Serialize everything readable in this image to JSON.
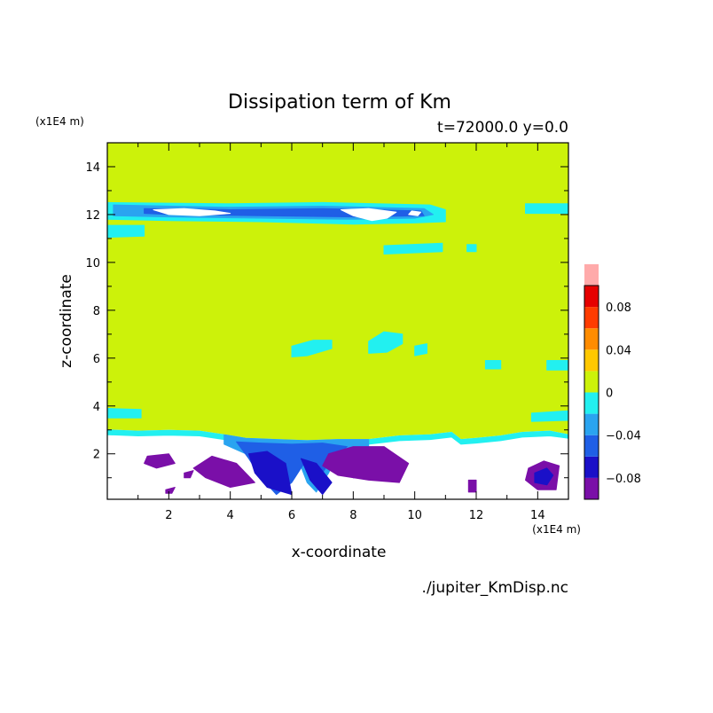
{
  "chart_data": {
    "type": "heatmap",
    "title": "Dissipation term of Km",
    "subtitle": "t=72000.0 y=0.0",
    "xlabel": "x-coordinate",
    "ylabel": "z-coordinate",
    "x_unit": "(x1E4 m)",
    "y_unit": "(x1E4 m)",
    "xlim": [
      0,
      15
    ],
    "ylim": [
      0.1,
      15
    ],
    "xticks": [
      2,
      4,
      6,
      8,
      10,
      12,
      14
    ],
    "yticks": [
      2,
      4,
      6,
      8,
      10,
      12,
      14
    ],
    "source": "./jupiter_KmDisp.nc",
    "colorbar": {
      "levels": [
        -0.1,
        -0.08,
        -0.06,
        -0.04,
        -0.02,
        0,
        0.02,
        0.04,
        0.06,
        0.08,
        0.1
      ],
      "colors": [
        "#7a0fa8",
        "#1a10c8",
        "#1f5fe6",
        "#2aa4f0",
        "#22f0f0",
        "#ccf20a",
        "#ffc800",
        "#ff8c00",
        "#ff3c00",
        "#e60000",
        "#ffaaaa"
      ],
      "tick_labels": [
        {
          "value": -0.08,
          "label": "−0.08"
        },
        {
          "value": -0.04,
          "label": "−0.04"
        },
        {
          "value": 0,
          "label": "0"
        },
        {
          "value": 0.04,
          "label": "0.04"
        },
        {
          "value": 0.08,
          "label": "0.08"
        }
      ]
    },
    "background_value_color": "#ccf20a",
    "regions": [
      {
        "level": "below",
        "color": "#ffffff",
        "points": [
          [
            0,
            0.1
          ],
          [
            15,
            0.1
          ],
          [
            15,
            2.8
          ],
          [
            14.4,
            2.95
          ],
          [
            13.5,
            2.9
          ],
          [
            12.8,
            2.75
          ],
          [
            12,
            2.65
          ],
          [
            11.5,
            2.6
          ],
          [
            11.2,
            2.9
          ],
          [
            10.5,
            2.8
          ],
          [
            9.5,
            2.75
          ],
          [
            8.5,
            2.6
          ],
          [
            7.5,
            2.6
          ],
          [
            6.5,
            2.55
          ],
          [
            5.5,
            2.6
          ],
          [
            4.5,
            2.65
          ],
          [
            3.8,
            2.8
          ],
          [
            3,
            2.95
          ],
          [
            2,
            2.98
          ],
          [
            1,
            2.95
          ],
          [
            0,
            3.0
          ]
        ]
      },
      {
        "level": -0.02,
        "color": "#22f0f0",
        "points": [
          [
            0,
            3.0
          ],
          [
            1,
            2.95
          ],
          [
            2,
            2.98
          ],
          [
            3,
            2.95
          ],
          [
            3.8,
            2.8
          ],
          [
            4.5,
            2.65
          ],
          [
            5.5,
            2.6
          ],
          [
            6.5,
            2.55
          ],
          [
            7.5,
            2.6
          ],
          [
            8.5,
            2.6
          ],
          [
            9.5,
            2.75
          ],
          [
            10.5,
            2.8
          ],
          [
            11.2,
            2.9
          ],
          [
            11.5,
            2.6
          ],
          [
            12,
            2.65
          ],
          [
            12.8,
            2.75
          ],
          [
            13.5,
            2.9
          ],
          [
            14.4,
            2.95
          ],
          [
            15,
            2.8
          ],
          [
            15,
            2.65
          ],
          [
            14.4,
            2.75
          ],
          [
            13.5,
            2.7
          ],
          [
            12.8,
            2.55
          ],
          [
            12,
            2.45
          ],
          [
            11.5,
            2.4
          ],
          [
            11.2,
            2.7
          ],
          [
            10.5,
            2.6
          ],
          [
            9.5,
            2.55
          ],
          [
            8.5,
            2.4
          ],
          [
            7.5,
            2.4
          ],
          [
            6.5,
            2.35
          ],
          [
            5.5,
            2.4
          ],
          [
            4.5,
            2.45
          ],
          [
            3.8,
            2.6
          ],
          [
            3,
            2.75
          ],
          [
            2,
            2.78
          ],
          [
            1,
            2.75
          ],
          [
            0,
            2.8
          ]
        ]
      },
      {
        "level": -0.02,
        "color": "#22f0f0",
        "points": [
          [
            0,
            12.5
          ],
          [
            4,
            12.45
          ],
          [
            7,
            12.5
          ],
          [
            10.5,
            12.4
          ],
          [
            11,
            12.2
          ],
          [
            11,
            11.7
          ],
          [
            10,
            11.65
          ],
          [
            8,
            11.6
          ],
          [
            5,
            11.7
          ],
          [
            2,
            11.75
          ],
          [
            0,
            11.8
          ]
        ]
      },
      {
        "level": -0.02,
        "color": "#22f0f0",
        "points": [
          [
            0,
            11.55
          ],
          [
            1.2,
            11.55
          ],
          [
            1.2,
            11.1
          ],
          [
            0,
            11.05
          ]
        ]
      },
      {
        "level": -0.02,
        "color": "#22f0f0",
        "points": [
          [
            13.6,
            12.45
          ],
          [
            15,
            12.45
          ],
          [
            15,
            12.05
          ],
          [
            13.6,
            12.05
          ]
        ]
      },
      {
        "level": -0.02,
        "color": "#22f0f0",
        "points": [
          [
            9,
            10.7
          ],
          [
            10.9,
            10.8
          ],
          [
            10.9,
            10.45
          ],
          [
            9,
            10.35
          ]
        ]
      },
      {
        "level": -0.02,
        "color": "#22f0f0",
        "points": [
          [
            11.7,
            10.75
          ],
          [
            12,
            10.75
          ],
          [
            12,
            10.45
          ],
          [
            11.7,
            10.45
          ]
        ]
      },
      {
        "level": -0.02,
        "color": "#22f0f0",
        "points": [
          [
            6,
            6.5
          ],
          [
            6.7,
            6.75
          ],
          [
            7.3,
            6.75
          ],
          [
            7.3,
            6.4
          ],
          [
            6.5,
            6.1
          ],
          [
            6,
            6.05
          ]
        ]
      },
      {
        "level": -0.02,
        "color": "#22f0f0",
        "points": [
          [
            8.5,
            6.7
          ],
          [
            9,
            7.1
          ],
          [
            9.6,
            7.0
          ],
          [
            9.6,
            6.6
          ],
          [
            9.1,
            6.25
          ],
          [
            8.5,
            6.2
          ]
        ]
      },
      {
        "level": -0.02,
        "color": "#22f0f0",
        "points": [
          [
            10,
            6.5
          ],
          [
            10.4,
            6.6
          ],
          [
            10.4,
            6.2
          ],
          [
            10,
            6.1
          ]
        ]
      },
      {
        "level": -0.02,
        "color": "#22f0f0",
        "points": [
          [
            12.3,
            5.9
          ],
          [
            12.8,
            5.9
          ],
          [
            12.8,
            5.55
          ],
          [
            12.3,
            5.55
          ]
        ]
      },
      {
        "level": -0.02,
        "color": "#22f0f0",
        "points": [
          [
            14.3,
            5.9
          ],
          [
            15,
            5.9
          ],
          [
            15,
            5.5
          ],
          [
            14.3,
            5.5
          ]
        ]
      },
      {
        "level": -0.02,
        "color": "#22f0f0",
        "points": [
          [
            0,
            3.9
          ],
          [
            1.1,
            3.85
          ],
          [
            1.1,
            3.5
          ],
          [
            0,
            3.5
          ]
        ]
      },
      {
        "level": -0.02,
        "color": "#22f0f0",
        "points": [
          [
            13.8,
            3.7
          ],
          [
            15,
            3.8
          ],
          [
            15,
            3.4
          ],
          [
            13.8,
            3.35
          ]
        ]
      },
      {
        "level": -0.04,
        "color": "#2aa4f0",
        "points": [
          [
            0.2,
            12.4
          ],
          [
            4,
            12.3
          ],
          [
            7,
            12.35
          ],
          [
            10.3,
            12.25
          ],
          [
            10.6,
            12.0
          ],
          [
            10,
            11.85
          ],
          [
            8,
            11.8
          ],
          [
            5,
            11.85
          ],
          [
            2,
            11.9
          ],
          [
            0.2,
            11.95
          ]
        ]
      },
      {
        "level": -0.06,
        "color": "#1f5fe6",
        "points": [
          [
            1.2,
            12.25
          ],
          [
            4,
            12.2
          ],
          [
            7,
            12.25
          ],
          [
            10.2,
            12.15
          ],
          [
            10.3,
            11.95
          ],
          [
            8,
            11.9
          ],
          [
            5,
            11.95
          ],
          [
            2,
            12.0
          ],
          [
            1.2,
            12.05
          ]
        ]
      },
      {
        "level": "below",
        "color": "#ffffff",
        "points": [
          [
            1.5,
            12.2
          ],
          [
            2.5,
            12.25
          ],
          [
            3.5,
            12.15
          ],
          [
            4,
            12.05
          ],
          [
            3,
            11.95
          ],
          [
            2,
            12.0
          ]
        ]
      },
      {
        "level": "below",
        "color": "#ffffff",
        "points": [
          [
            7.6,
            12.2
          ],
          [
            8.5,
            12.25
          ],
          [
            9.4,
            12.1
          ],
          [
            9.1,
            11.85
          ],
          [
            8.6,
            11.75
          ],
          [
            8.0,
            11.95
          ]
        ]
      },
      {
        "level": "below",
        "color": "#ffffff",
        "points": [
          [
            9.9,
            12.15
          ],
          [
            10.2,
            12.1
          ],
          [
            10.1,
            11.95
          ],
          [
            9.8,
            12.0
          ]
        ]
      },
      {
        "level": -0.04,
        "color": "#2aa4f0",
        "points": [
          [
            3.8,
            2.8
          ],
          [
            4.5,
            2.65
          ],
          [
            5.5,
            2.6
          ],
          [
            6.5,
            2.55
          ],
          [
            7.5,
            2.6
          ],
          [
            8.5,
            2.6
          ],
          [
            8.5,
            2.2
          ],
          [
            7.5,
            2.0
          ],
          [
            7.2,
            1.2
          ],
          [
            6.8,
            0.4
          ],
          [
            6.5,
            0.8
          ],
          [
            6.2,
            1.8
          ],
          [
            5.8,
            1.0
          ],
          [
            5.5,
            0.4
          ],
          [
            5.0,
            1.2
          ],
          [
            4.5,
            2.0
          ],
          [
            3.8,
            2.4
          ]
        ]
      },
      {
        "level": -0.06,
        "color": "#1f5fe6",
        "points": [
          [
            4.2,
            2.5
          ],
          [
            5.0,
            2.45
          ],
          [
            6.0,
            2.4
          ],
          [
            7.0,
            2.45
          ],
          [
            7.8,
            2.3
          ],
          [
            7.2,
            1.6
          ],
          [
            6.8,
            0.8
          ],
          [
            6.4,
            1.6
          ],
          [
            6.0,
            0.8
          ],
          [
            5.5,
            0.3
          ],
          [
            5.0,
            1.0
          ],
          [
            4.6,
            1.8
          ]
        ]
      },
      {
        "level": -0.08,
        "color": "#1a10c8",
        "points": [
          [
            4.6,
            2.0
          ],
          [
            5.2,
            2.1
          ],
          [
            5.8,
            1.6
          ],
          [
            6.0,
            0.3
          ],
          [
            5.2,
            0.6
          ],
          [
            4.8,
            1.2
          ]
        ]
      },
      {
        "level": -0.08,
        "color": "#1a10c8",
        "points": [
          [
            6.3,
            1.8
          ],
          [
            6.8,
            1.6
          ],
          [
            7.3,
            0.8
          ],
          [
            7.0,
            0.3
          ],
          [
            6.6,
            0.9
          ]
        ]
      },
      {
        "level": -0.08,
        "color": "#1a10c8",
        "points": [
          [
            7.5,
            1.8
          ],
          [
            8.5,
            2.0
          ],
          [
            9.3,
            1.7
          ],
          [
            9.0,
            1.1
          ],
          [
            8.0,
            1.0
          ],
          [
            7.4,
            1.3
          ]
        ]
      },
      {
        "level": -0.1,
        "color": "#7a0fa8",
        "points": [
          [
            1.3,
            1.9
          ],
          [
            2.0,
            2.0
          ],
          [
            2.2,
            1.6
          ],
          [
            1.6,
            1.4
          ],
          [
            1.2,
            1.6
          ]
        ]
      },
      {
        "level": -0.1,
        "color": "#7a0fa8",
        "points": [
          [
            2.8,
            1.4
          ],
          [
            3.4,
            1.9
          ],
          [
            4.2,
            1.6
          ],
          [
            4.8,
            0.8
          ],
          [
            4.0,
            0.6
          ],
          [
            3.2,
            1.0
          ]
        ]
      },
      {
        "level": -0.1,
        "color": "#7a0fa8",
        "points": [
          [
            7.2,
            2.0
          ],
          [
            8.0,
            2.3
          ],
          [
            9.0,
            2.3
          ],
          [
            9.8,
            1.6
          ],
          [
            9.5,
            0.8
          ],
          [
            8.5,
            0.9
          ],
          [
            7.5,
            1.1
          ],
          [
            7.0,
            1.5
          ]
        ]
      },
      {
        "level": -0.1,
        "color": "#7a0fa8",
        "points": [
          [
            13.7,
            1.4
          ],
          [
            14.2,
            1.7
          ],
          [
            14.7,
            1.5
          ],
          [
            14.6,
            0.5
          ],
          [
            14.0,
            0.5
          ],
          [
            13.6,
            0.9
          ]
        ]
      },
      {
        "level": -0.08,
        "color": "#1a10c8",
        "points": [
          [
            13.9,
            1.2
          ],
          [
            14.3,
            1.4
          ],
          [
            14.5,
            1.1
          ],
          [
            14.3,
            0.7
          ],
          [
            13.9,
            0.8
          ]
        ]
      },
      {
        "level": -0.1,
        "color": "#7a0fa8",
        "points": [
          [
            11.75,
            0.9
          ],
          [
            12.0,
            0.9
          ],
          [
            12.0,
            0.4
          ],
          [
            11.75,
            0.4
          ]
        ]
      },
      {
        "level": -0.1,
        "color": "#7a0fa8",
        "points": [
          [
            1.9,
            0.5
          ],
          [
            2.2,
            0.6
          ],
          [
            2.1,
            0.35
          ],
          [
            1.9,
            0.35
          ]
        ]
      },
      {
        "level": -0.1,
        "color": "#7a0fa8",
        "points": [
          [
            2.5,
            1.2
          ],
          [
            2.8,
            1.3
          ],
          [
            2.7,
            1.0
          ],
          [
            2.5,
            1.0
          ]
        ]
      }
    ]
  }
}
